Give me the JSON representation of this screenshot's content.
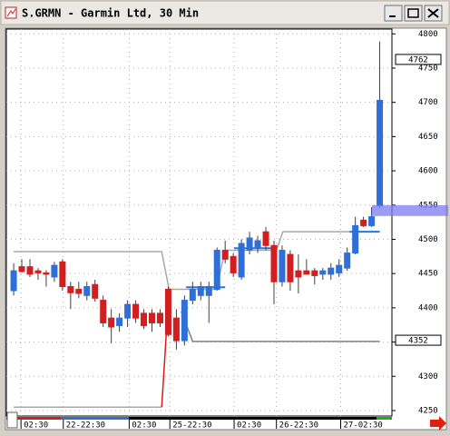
{
  "chart_data": {
    "type": "candlestick",
    "title": "S.GRMN - Garmin Ltd, 30 Min",
    "open": [
      4425,
      4460,
      4460,
      4454,
      4451,
      4445,
      4467,
      4431,
      4427,
      4418,
      4434,
      4411,
      4385,
      4374,
      4385,
      4405,
      4392,
      4392,
      4392,
      4427,
      4385,
      4352,
      4411,
      4418,
      4418,
      4427,
      4484,
      4475,
      4445,
      4484,
      4488,
      4511,
      4491,
      4438,
      4478,
      4454,
      4454,
      4454,
      4449,
      4449,
      4451,
      4458,
      4480,
      4528,
      4520,
      4549
    ],
    "high": [
      4465,
      4471,
      4471,
      4458,
      4455,
      4467,
      4471,
      4438,
      4438,
      4438,
      4441,
      4418,
      4398,
      4392,
      4411,
      4411,
      4398,
      4398,
      4398,
      4431,
      4398,
      4418,
      4438,
      4438,
      4438,
      4488,
      4498,
      4480,
      4500,
      4511,
      4505,
      4518,
      4498,
      4491,
      4484,
      4478,
      4471,
      4458,
      4458,
      4465,
      4471,
      4488,
      4533,
      4533,
      4547,
      4789
    ],
    "low": [
      4418,
      4451,
      4445,
      4441,
      4431,
      4438,
      4425,
      4398,
      4414,
      4411,
      4409,
      4372,
      4348,
      4365,
      4372,
      4378,
      4369,
      4365,
      4372,
      4358,
      4339,
      4345,
      4405,
      4411,
      4378,
      4425,
      4465,
      4445,
      4441,
      4478,
      4480,
      4484,
      4405,
      4431,
      4425,
      4421,
      4449,
      4434,
      4441,
      4441,
      4445,
      4454,
      4478,
      4518,
      4518,
      4546
    ],
    "close": [
      4454,
      4453,
      4449,
      4451,
      4449,
      4462,
      4431,
      4422,
      4421,
      4431,
      4414,
      4378,
      4372,
      4385,
      4405,
      4385,
      4374,
      4378,
      4378,
      4361,
      4352,
      4411,
      4427,
      4431,
      4431,
      4484,
      4471,
      4451,
      4494,
      4502,
      4498,
      4491,
      4438,
      4484,
      4438,
      4445,
      4449,
      4447,
      4454,
      4458,
      4462,
      4480,
      4520,
      4520,
      4533,
      4703
    ],
    "up_color": "#2f6fd6",
    "down_color": "#d21e1e",
    "lines": [
      {
        "color": "#a8a8a8",
        "x": [
          0,
          18.2,
          19.1,
          24.9,
          26,
          32.3,
          33.1,
          45
        ],
        "values": [
          4482,
          4482,
          4427,
          4427,
          4484,
          4484,
          4511,
          4511
        ]
      },
      {
        "color": "#a8a8a8",
        "x": [
          0,
          18.2
        ],
        "values": [
          4255,
          4255
        ]
      },
      {
        "color": "#e01818",
        "x": [
          18.2,
          19.1
        ],
        "values": [
          4255,
          4427
        ]
      },
      {
        "color": "#808080",
        "x": [
          20.6,
          22,
          45
        ],
        "values": [
          4395,
          4351,
          4351
        ]
      },
      {
        "color": "#1e7be6",
        "x": [
          21.2,
          26
        ],
        "values": [
          4430,
          4430
        ]
      },
      {
        "color": "#1e7be6",
        "x": [
          27.1,
          31.8
        ],
        "values": [
          4487,
          4487
        ]
      },
      {
        "color": "#1e7be6",
        "x": [
          41.3,
          45
        ],
        "values": [
          4511,
          4511
        ]
      }
    ],
    "price_marker": 4542,
    "price_labels": [
      4762,
      4352
    ],
    "xlim": [
      -0.9,
      46.5
    ],
    "xticks": [
      {
        "value": 0.9,
        "label": "02:30"
      },
      {
        "value": 6.1,
        "label": "22-22:30"
      },
      {
        "value": 14.2,
        "label": "02:30"
      },
      {
        "value": 19.2,
        "label": "25-22:30"
      },
      {
        "value": 27.1,
        "label": "02:30"
      },
      {
        "value": 32.3,
        "label": "26-22:30"
      },
      {
        "value": 40.2,
        "label": "27-02:30"
      }
    ],
    "ylim": [
      4242,
      4807
    ],
    "yticks": [
      4250,
      4300,
      4350,
      4400,
      4450,
      4500,
      4550,
      4600,
      4650,
      4700,
      4750,
      4800
    ],
    "grid": true
  }
}
